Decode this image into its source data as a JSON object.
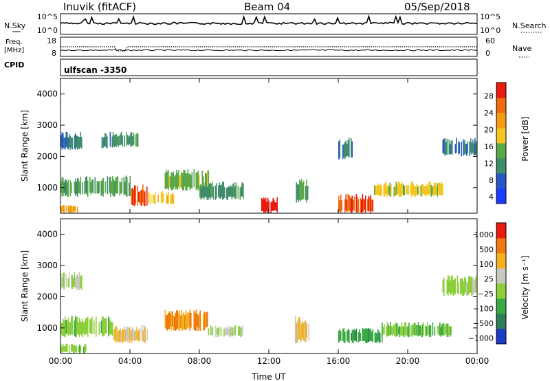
{
  "header": {
    "station": "Inuvik (fitACF)",
    "beam": "Beam 04",
    "date": "05/Sep/2018"
  },
  "noise_panel": {
    "left_label": "N.Sky",
    "left_ticks": [
      "10^5",
      "10^0"
    ],
    "right_ticks": [
      "10^5",
      "10^0"
    ],
    "right_label": "N.Search"
  },
  "freq_panel": {
    "left_label_line1": "Freq.",
    "left_label_line2": "[MHz]",
    "left_ticks": [
      "18",
      "8"
    ],
    "right_ticks": [
      "60",
      "0"
    ],
    "right_label": "Nave"
  },
  "cpid": {
    "label": "CPID",
    "value": "ulfscan -3350"
  },
  "chart_data": [
    {
      "type": "heatmap",
      "name": "power",
      "xlabel": "",
      "ylabel": "Slant Range [km]",
      "xlim": [
        0,
        24
      ],
      "ylim": [
        180,
        4500
      ],
      "xtick_labels": [
        "00:00",
        "04:00",
        "08:00",
        "12:00",
        "16:00",
        "20:00",
        "00:00"
      ],
      "ytick_labels": [
        "1000",
        "2000",
        "3000",
        "4000"
      ],
      "colorbar": {
        "label": "Power [dB]",
        "range": [
          0,
          30
        ],
        "tick_labels": [
          "28",
          "24",
          "20",
          "16",
          "12",
          "8",
          "4"
        ],
        "colors": [
          "#1e3cff",
          "#2a57c8",
          "#3f8d6a",
          "#5aa84a",
          "#f3c623",
          "#f39c12",
          "#f06a10",
          "#e81b10"
        ]
      },
      "regions": [
        {
          "t": [
            0.0,
            1.2
          ],
          "r": [
            2200,
            2800
          ],
          "value": 8
        },
        {
          "t": [
            0.0,
            1.0
          ],
          "r": [
            180,
            450
          ],
          "value": 20
        },
        {
          "t": [
            0.0,
            4.0
          ],
          "r": [
            700,
            1400
          ],
          "value": 12
        },
        {
          "t": [
            2.3,
            3.0
          ],
          "r": [
            2200,
            2800
          ],
          "value": 8
        },
        {
          "t": [
            3.0,
            4.5
          ],
          "r": [
            2300,
            2800
          ],
          "value": 10
        },
        {
          "t": [
            4.0,
            5.0
          ],
          "r": [
            400,
            1100
          ],
          "value": 26
        },
        {
          "t": [
            5.0,
            6.5
          ],
          "r": [
            450,
            900
          ],
          "value": 18
        },
        {
          "t": [
            6.0,
            8.5
          ],
          "r": [
            900,
            1600
          ],
          "value": 14
        },
        {
          "t": [
            8.0,
            10.5
          ],
          "r": [
            600,
            1200
          ],
          "value": 10
        },
        {
          "t": [
            11.5,
            12.5
          ],
          "r": [
            180,
            700
          ],
          "value": 28
        },
        {
          "t": [
            13.5,
            14.3
          ],
          "r": [
            500,
            1300
          ],
          "value": 12
        },
        {
          "t": [
            16.0,
            16.8
          ],
          "r": [
            1900,
            2600
          ],
          "value": 8
        },
        {
          "t": [
            16.0,
            18.0
          ],
          "r": [
            180,
            800
          ],
          "value": 26
        },
        {
          "t": [
            18.0,
            22.0
          ],
          "r": [
            700,
            1200
          ],
          "value": 16
        },
        {
          "t": [
            22.0,
            24.0
          ],
          "r": [
            2000,
            2600
          ],
          "value": 8
        }
      ]
    },
    {
      "type": "heatmap",
      "name": "velocity",
      "xlabel": "Time UT",
      "ylabel": "Slant Range [km]",
      "xlim": [
        0,
        24
      ],
      "ylim": [
        180,
        4500
      ],
      "xtick_labels": [
        "00:00",
        "04:00",
        "08:00",
        "12:00",
        "16:00",
        "20:00",
        "00:00"
      ],
      "ytick_labels": [
        "1000",
        "2000",
        "3000",
        "4000"
      ],
      "colorbar": {
        "label": "Velocity [m s⁻¹]",
        "range": [
          -1200,
          1200
        ],
        "tick_labels": [
          "1000",
          "500",
          "100",
          "25",
          "−25",
          "−100",
          "−500",
          "−1000"
        ],
        "colors": [
          "#1c3cc8",
          "#2f7d5a",
          "#3aa844",
          "#8ccf3a",
          "#c8c8c0",
          "#f3b020",
          "#f07a10",
          "#e81b10"
        ]
      },
      "regions": [
        {
          "t": [
            0.0,
            1.2
          ],
          "r": [
            2200,
            2800
          ],
          "value": 0
        },
        {
          "t": [
            0.0,
            1.5
          ],
          "r": [
            180,
            500
          ],
          "value": -200
        },
        {
          "t": [
            0.0,
            3.0
          ],
          "r": [
            700,
            1400
          ],
          "value": -200
        },
        {
          "t": [
            3.0,
            5.0
          ],
          "r": [
            500,
            1100
          ],
          "value": 300
        },
        {
          "t": [
            6.0,
            8.5
          ],
          "r": [
            900,
            1600
          ],
          "value": 600
        },
        {
          "t": [
            8.5,
            10.5
          ],
          "r": [
            700,
            1100
          ],
          "value": 0
        },
        {
          "t": [
            13.5,
            14.3
          ],
          "r": [
            500,
            1400
          ],
          "value": 300
        },
        {
          "t": [
            16.0,
            18.5
          ],
          "r": [
            500,
            1000
          ],
          "value": -500
        },
        {
          "t": [
            18.5,
            22.5
          ],
          "r": [
            700,
            1200
          ],
          "value": -300
        },
        {
          "t": [
            22.0,
            24.0
          ],
          "r": [
            2000,
            2700
          ],
          "value": -50
        }
      ]
    }
  ]
}
